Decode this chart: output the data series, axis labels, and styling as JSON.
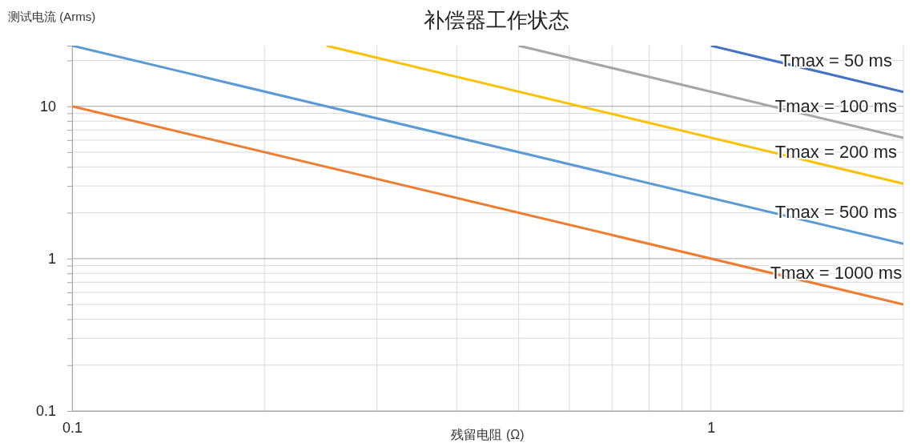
{
  "chart_data": {
    "type": "line",
    "title": "补偿器工作状态",
    "xlabel": "残留电阻 (Ω)",
    "ylabel": "测试电流 (Arms)",
    "log": "xy",
    "grid": true,
    "marker": "none",
    "line_style": "solid",
    "xlim": [
      0.1,
      2
    ],
    "ylim": [
      0.1,
      25
    ],
    "xticks": [
      0.1,
      {
        "value": 0.2,
        "label": null
      },
      {
        "value": 0.3,
        "label": null
      },
      {
        "value": 0.4,
        "label": null
      },
      {
        "value": 0.5,
        "label": null
      },
      {
        "value": 0.6,
        "label": null
      },
      {
        "value": 0.7,
        "label": null
      },
      {
        "value": 0.8,
        "label": null
      },
      {
        "value": 0.9,
        "label": null
      },
      1,
      {
        "value": 2,
        "label": null
      }
    ],
    "yticks": [
      0.1,
      {
        "value": 0.2,
        "label": null
      },
      {
        "value": 0.3,
        "label": null
      },
      {
        "value": 0.4,
        "label": null
      },
      {
        "value": 0.5,
        "label": null
      },
      {
        "value": 0.6,
        "label": null
      },
      {
        "value": 0.7,
        "label": null
      },
      {
        "value": 0.8,
        "label": null
      },
      {
        "value": 0.9,
        "label": null
      },
      1,
      {
        "value": 2,
        "label": null
      },
      {
        "value": 3,
        "label": null
      },
      {
        "value": 4,
        "label": null
      },
      {
        "value": 5,
        "label": null
      },
      {
        "value": 6,
        "label": null
      },
      {
        "value": 7,
        "label": null
      },
      {
        "value": 8,
        "label": null
      },
      {
        "value": 9,
        "label": null
      },
      10,
      {
        "value": 20,
        "label": null
      }
    ],
    "series": [
      {
        "name": "Tmax = 1000 ms",
        "color": "#ed7d31",
        "x": [
          0.1,
          2
        ],
        "values": [
          10,
          0.5
        ]
      },
      {
        "name": "Tmax = 500 ms",
        "color": "#5b9bd5",
        "x": [
          0.1,
          2
        ],
        "values": [
          25,
          1.25
        ]
      },
      {
        "name": "Tmax = 200 ms",
        "color": "#ffc000",
        "x": [
          0.25,
          2
        ],
        "values": [
          25,
          3.1
        ]
      },
      {
        "name": "Tmax = 100 ms",
        "color": "#a5a5a5",
        "x": [
          0.5,
          2
        ],
        "values": [
          25,
          6.2
        ]
      },
      {
        "name": "Tmax = 50 ms",
        "color": "#4472c4",
        "x": [
          1,
          2
        ],
        "values": [
          25,
          12.4
        ]
      }
    ]
  }
}
